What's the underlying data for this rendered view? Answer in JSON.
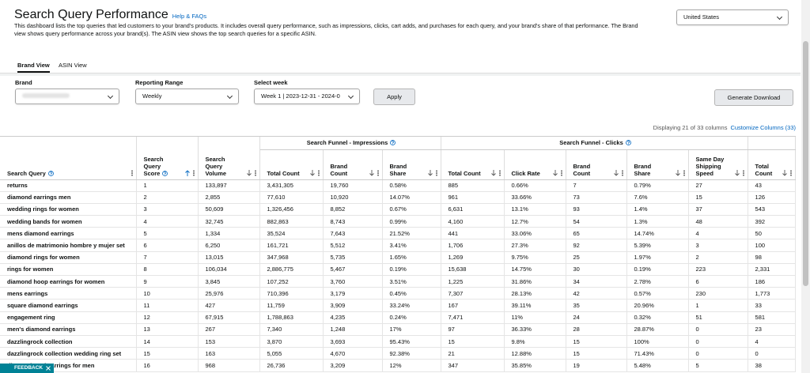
{
  "header": {
    "title": "Search Query Performance",
    "help_link": "Help & FAQs",
    "description": "This dashboard lists the top queries that led customers to your brand's products. It includes overall query performance, such as impressions, clicks, cart adds, and purchases for each query, and your brand's share of that performance. The Brand view shows query performance across your brand(s). The ASIN view shows the top search queries for a specific ASIN.",
    "country": "United States"
  },
  "tabs": [
    "Brand View",
    "ASIN View"
  ],
  "filters": {
    "brand_label": "Brand",
    "range_label": "Reporting Range",
    "range_value": "Weekly",
    "week_label": "Select week",
    "week_value": "Week 1 | 2023-12-31 - 2024-0",
    "apply": "Apply",
    "download": "Generate Download"
  },
  "table": {
    "status": "Displaying 21 of 33 columns",
    "customize": "Customize Columns (33)",
    "groups": [
      "Search Funnel - Impressions",
      "Search Funnel - Clicks"
    ],
    "columns": [
      "Search Query",
      "Search Query Score",
      "Search Query Volume",
      "Total Count",
      "Brand Count",
      "Brand Share",
      "Total Count",
      "Click Rate",
      "Brand Count",
      "Brand Share",
      "Same Day Shipping Speed",
      "Total Count"
    ],
    "rows": [
      [
        "returns",
        "1",
        "133,897",
        "3,431,305",
        "19,760",
        "0.58%",
        "885",
        "0.66%",
        "7",
        "0.79%",
        "27",
        "43"
      ],
      [
        "diamond earrings men",
        "2",
        "2,855",
        "77,610",
        "10,920",
        "14.07%",
        "961",
        "33.66%",
        "73",
        "7.6%",
        "15",
        "126"
      ],
      [
        "wedding rings for women",
        "3",
        "50,609",
        "1,326,456",
        "8,852",
        "0.67%",
        "6,631",
        "13.1%",
        "93",
        "1.4%",
        "37",
        "543"
      ],
      [
        "wedding bands for women",
        "4",
        "32,745",
        "882,863",
        "8,743",
        "0.99%",
        "4,160",
        "12.7%",
        "54",
        "1.3%",
        "48",
        "392"
      ],
      [
        "mens diamond earrings",
        "5",
        "1,334",
        "35,524",
        "7,643",
        "21.52%",
        "441",
        "33.06%",
        "65",
        "14.74%",
        "4",
        "50"
      ],
      [
        "anillos de matrimonio hombre y mujer set",
        "6",
        "6,250",
        "161,721",
        "5,512",
        "3.41%",
        "1,706",
        "27.3%",
        "92",
        "5.39%",
        "3",
        "100"
      ],
      [
        "diamond rings for women",
        "7",
        "13,015",
        "347,968",
        "5,735",
        "1.65%",
        "1,269",
        "9.75%",
        "25",
        "1.97%",
        "2",
        "98"
      ],
      [
        "rings for women",
        "8",
        "106,034",
        "2,886,775",
        "5,467",
        "0.19%",
        "15,638",
        "14.75%",
        "30",
        "0.19%",
        "223",
        "2,331"
      ],
      [
        "diamond hoop earrings for women",
        "9",
        "3,845",
        "107,252",
        "3,760",
        "3.51%",
        "1,225",
        "31.86%",
        "34",
        "2.78%",
        "6",
        "186"
      ],
      [
        "mens earrings",
        "10",
        "25,976",
        "710,396",
        "3,179",
        "0.45%",
        "7,307",
        "28.13%",
        "42",
        "0.57%",
        "230",
        "1,773"
      ],
      [
        "square diamond earrings",
        "11",
        "427",
        "11,759",
        "3,909",
        "33.24%",
        "167",
        "39.11%",
        "35",
        "20.96%",
        "1",
        "33"
      ],
      [
        "engagement ring",
        "12",
        "67,915",
        "1,788,863",
        "4,235",
        "0.24%",
        "7,471",
        "11%",
        "24",
        "0.32%",
        "51",
        "581"
      ],
      [
        "men's diamond earrings",
        "13",
        "267",
        "7,340",
        "1,248",
        "17%",
        "97",
        "36.33%",
        "28",
        "28.87%",
        "0",
        "23"
      ],
      [
        "dazzlingrock collection",
        "14",
        "153",
        "3,870",
        "3,693",
        "95.43%",
        "15",
        "9.8%",
        "15",
        "100%",
        "0",
        "4"
      ],
      [
        "dazzlingrock collection wedding ring set",
        "15",
        "163",
        "5,055",
        "4,670",
        "92.38%",
        "21",
        "12.88%",
        "15",
        "71.43%",
        "0",
        "0"
      ],
      [
        "diamond stud earrings for men",
        "16",
        "968",
        "26,736",
        "3,209",
        "12%",
        "347",
        "35.85%",
        "19",
        "5.48%",
        "5",
        "38"
      ]
    ]
  },
  "feedback": "FEEDBACK"
}
